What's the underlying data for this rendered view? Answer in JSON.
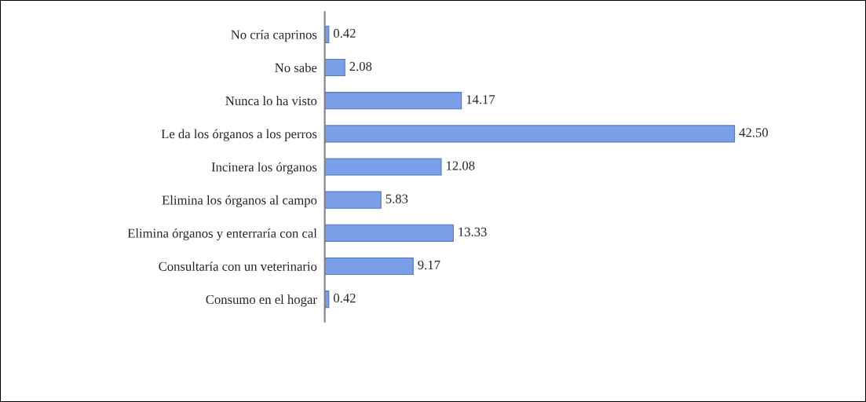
{
  "chart_data": {
    "type": "bar",
    "orientation": "horizontal",
    "categories": [
      "No cría caprinos",
      "No sabe",
      "Nunca lo ha visto",
      "Le da los órganos a los perros",
      "Incinera los órganos",
      "Elimina los órganos al campo",
      "Elimina órganos y enterraría con cal",
      "Consultaría con un veterinario",
      "Consumo en el hogar"
    ],
    "values": [
      0.42,
      2.08,
      14.17,
      42.5,
      12.08,
      5.83,
      13.33,
      9.17,
      0.42
    ],
    "value_labels": [
      "0.42",
      "2.08",
      "14.17",
      "42.50",
      "12.08",
      "5.83",
      "13.33",
      "9.17",
      "0.42"
    ],
    "color": "#7a9ee8",
    "tick_labels": "y",
    "grid": false
  }
}
